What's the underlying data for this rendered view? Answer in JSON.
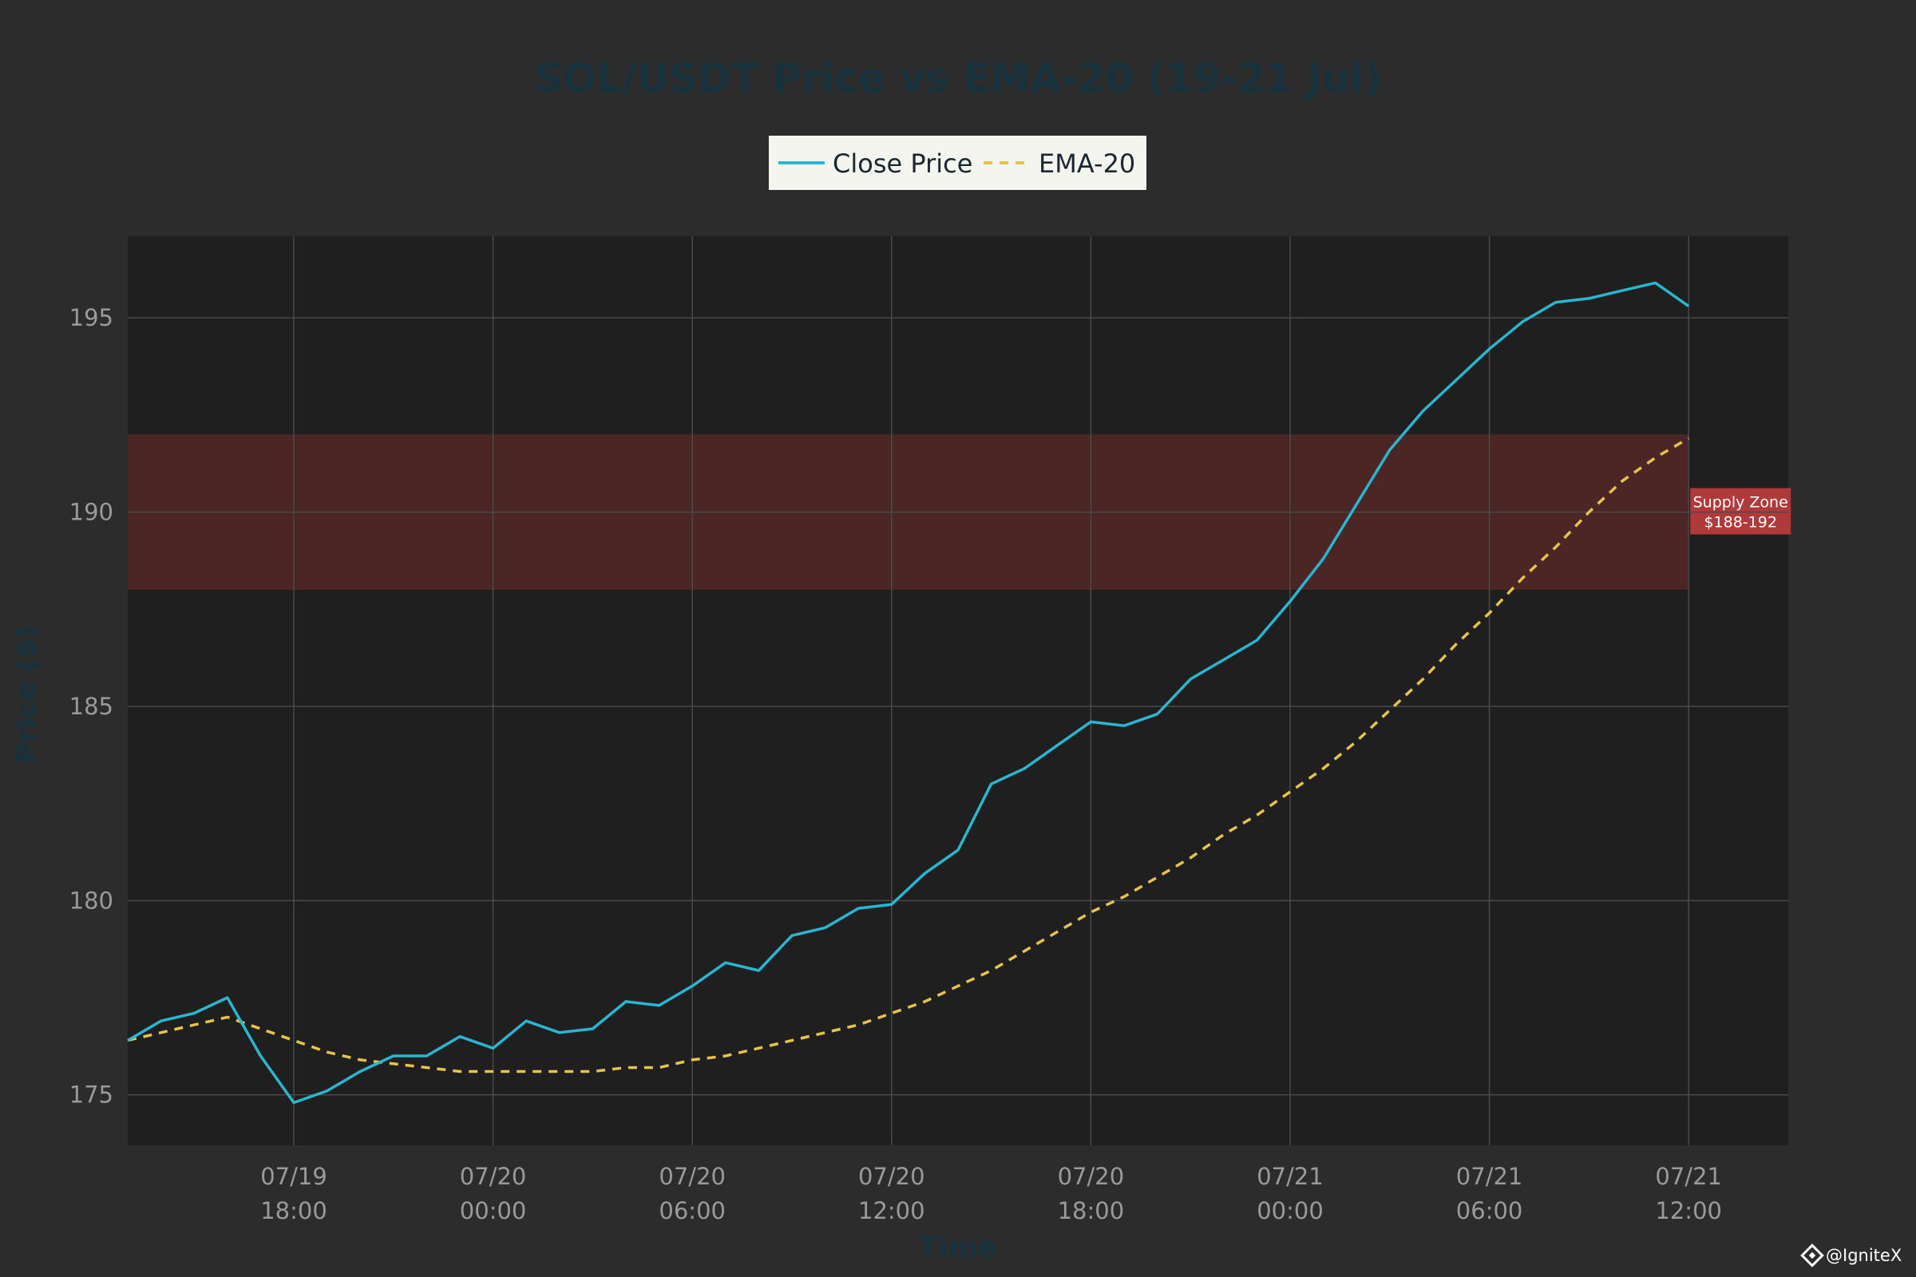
{
  "chart_data": {
    "type": "line",
    "title": "SOL/USDT Price vs EMA-20 (19-21 Jul)",
    "xlabel": "Time",
    "ylabel": "Price ($)",
    "ylim": [
      173.7,
      197.1
    ],
    "yticks": [
      175,
      180,
      185,
      190,
      195
    ],
    "x_hours": [
      13,
      14,
      15,
      16,
      17,
      18,
      19,
      20,
      21,
      22,
      23,
      24,
      25,
      26,
      27,
      28,
      29,
      30,
      31,
      32,
      33,
      34,
      35,
      36,
      37,
      38,
      39,
      40,
      41,
      42,
      43,
      44,
      45,
      46,
      47,
      48,
      49,
      50,
      51,
      52,
      53,
      54,
      55,
      56,
      57,
      58,
      59,
      60
    ],
    "xlim_hours": [
      13,
      63
    ],
    "xticks": [
      {
        "hour": 18,
        "date": "07/19",
        "time": "18:00"
      },
      {
        "hour": 24,
        "date": "07/20",
        "time": "00:00"
      },
      {
        "hour": 30,
        "date": "07/20",
        "time": "06:00"
      },
      {
        "hour": 36,
        "date": "07/20",
        "time": "12:00"
      },
      {
        "hour": 42,
        "date": "07/20",
        "time": "18:00"
      },
      {
        "hour": 48,
        "date": "07/21",
        "time": "00:00"
      },
      {
        "hour": 54,
        "date": "07/21",
        "time": "06:00"
      },
      {
        "hour": 60,
        "date": "07/21",
        "time": "12:00"
      }
    ],
    "series": [
      {
        "name": "Close Price",
        "color": "#29b6d1",
        "style": "solid",
        "values": [
          176.4,
          176.9,
          177.1,
          177.5,
          176.0,
          174.8,
          175.1,
          175.6,
          176.0,
          176.0,
          176.5,
          176.2,
          176.9,
          176.6,
          176.7,
          177.4,
          177.3,
          177.8,
          178.4,
          178.2,
          179.1,
          179.3,
          179.8,
          179.9,
          180.7,
          181.3,
          183.0,
          183.4,
          184.0,
          184.6,
          184.5,
          184.8,
          185.7,
          186.2,
          186.7,
          187.7,
          188.8,
          190.2,
          191.6,
          192.6,
          193.4,
          194.2,
          194.9,
          195.4,
          195.5,
          195.7,
          195.9,
          195.3
        ]
      },
      {
        "name": "EMA-20",
        "color": "#e6c34a",
        "style": "dashed",
        "values": [
          176.4,
          176.6,
          176.8,
          177.0,
          176.7,
          176.4,
          176.1,
          175.9,
          175.8,
          175.7,
          175.6,
          175.6,
          175.6,
          175.6,
          175.6,
          175.7,
          175.7,
          175.9,
          176.0,
          176.2,
          176.4,
          176.6,
          176.8,
          177.1,
          177.4,
          177.8,
          178.2,
          178.7,
          179.2,
          179.7,
          180.1,
          180.6,
          181.1,
          181.7,
          182.2,
          182.8,
          183.4,
          184.1,
          184.9,
          185.7,
          186.6,
          187.4,
          188.3,
          189.1,
          190.0,
          190.8,
          191.4,
          191.9
        ]
      }
    ],
    "legend": {
      "position": "top-center"
    },
    "grid": true,
    "annotation": {
      "label_line1": "Supply Zone",
      "label_line2": "$188-192",
      "y_range": [
        188,
        192
      ],
      "x_hours": [
        13,
        60
      ],
      "fill_color": "#8b2e2e",
      "label_color": "#b03a3a"
    },
    "watermark": "@IgniteX",
    "colors": {
      "page_bg": "#2c2c2c",
      "plot_bg": "#1f1f1f",
      "grid": "#4a4a4a",
      "legend_bg": "#f4f5ef"
    }
  }
}
